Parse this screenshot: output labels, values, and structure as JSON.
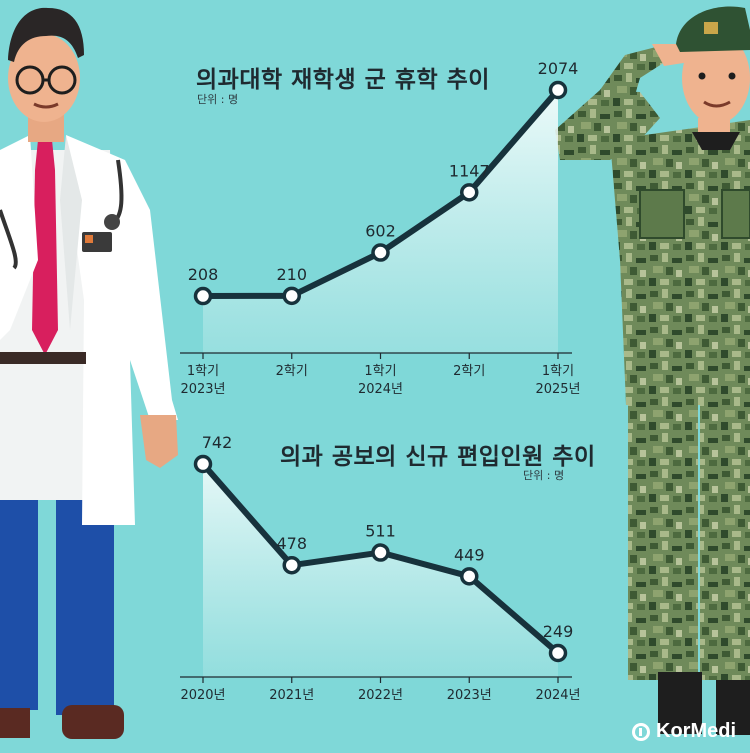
{
  "brand": {
    "logo_text": "KorMedi"
  },
  "colors": {
    "background": "#7fd8d8",
    "line": "#17323c",
    "marker_fill": "#ffffff",
    "area": "#e8f9f8"
  },
  "charts": [
    {
      "title": "의과대학 재학생 군 휴학 추이",
      "unit": "단위 : 명"
    },
    {
      "title": "의과 공보의 신규 편입인원 추이",
      "unit": "단위 : 명"
    }
  ],
  "chart_data": [
    {
      "type": "line",
      "title": "의과대학 재학생 군 휴학 추이",
      "unit": "단위 : 명",
      "categories": [
        [
          "1학기",
          "2023년"
        ],
        [
          "2학기",
          ""
        ],
        [
          "1학기",
          "2024년"
        ],
        [
          "2학기",
          ""
        ],
        [
          "1학기",
          "2025년"
        ]
      ],
      "values": [
        208,
        210,
        602,
        1147,
        2074
      ],
      "ylim": [
        0,
        2074
      ],
      "grid": false
    },
    {
      "type": "line",
      "title": "의과 공보의 신규 편입인원 추이",
      "unit": "단위 : 명",
      "categories": [
        [
          "2020년"
        ],
        [
          "2021년"
        ],
        [
          "2022년"
        ],
        [
          "2023년"
        ],
        [
          "2024년"
        ]
      ],
      "values": [
        742,
        478,
        511,
        449,
        249
      ],
      "ylim": [
        249,
        742
      ],
      "grid": false
    }
  ]
}
